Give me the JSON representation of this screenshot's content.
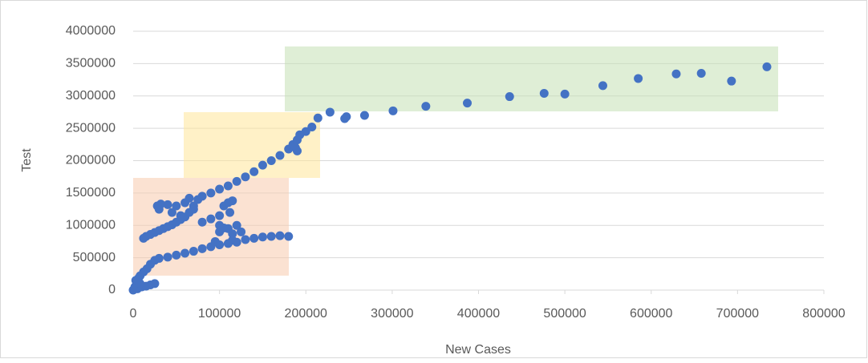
{
  "chart_data": {
    "type": "scatter",
    "x_label": "New Cases",
    "y_label": "Test",
    "color": "#4472c4",
    "grid": true,
    "xlim": [
      0,
      800000
    ],
    "xticks": [
      0,
      100000,
      200000,
      300000,
      400000,
      500000,
      600000,
      700000,
      800000
    ],
    "ylim": [
      0,
      4000000
    ],
    "yticks": [
      0,
      500000,
      1000000,
      1500000,
      2000000,
      2500000,
      3000000,
      3500000,
      4000000
    ],
    "x": [
      228000,
      245000,
      247000,
      268000,
      301000,
      339000,
      387000,
      436000,
      476000,
      500000,
      544000,
      585000,
      629000,
      658000,
      693000,
      734000,
      214000,
      207000,
      200000,
      193000,
      12000,
      15000,
      20000,
      25000,
      30000,
      35000,
      40000,
      45000,
      50000,
      55000,
      60000,
      65000,
      70000,
      75000,
      80000,
      90000,
      100000,
      110000,
      120000,
      130000,
      140000,
      150000,
      160000,
      170000,
      180000,
      185000,
      190000,
      188000,
      190000,
      28000,
      32000,
      40000,
      50000,
      60000,
      65000,
      30000,
      45000,
      55000,
      70000,
      80000,
      90000,
      100000,
      105000,
      110000,
      115000,
      112000,
      100000,
      110000,
      120000,
      125000,
      115000,
      0,
      2000,
      4000,
      6000,
      8000,
      12000,
      16000,
      20000,
      25000,
      30000,
      40000,
      50000,
      60000,
      70000,
      80000,
      90000,
      100000,
      110000,
      120000,
      130000,
      140000,
      150000,
      160000,
      170000,
      180000,
      95000,
      100000,
      105000,
      115000,
      5000,
      10000,
      15000,
      20000,
      25000,
      3000,
      8000
    ],
    "values": [
      2750000,
      2650000,
      2680000,
      2700000,
      2770000,
      2840000,
      2890000,
      2990000,
      3040000,
      3030000,
      3160000,
      3270000,
      3340000,
      3350000,
      3230000,
      3450000,
      2660000,
      2520000,
      2450000,
      2400000,
      800000,
      830000,
      860000,
      890000,
      920000,
      950000,
      980000,
      1010000,
      1050000,
      1090000,
      1130000,
      1200000,
      1300000,
      1400000,
      1450000,
      1500000,
      1560000,
      1610000,
      1680000,
      1750000,
      1830000,
      1930000,
      2000000,
      2080000,
      2180000,
      2250000,
      2320000,
      2200000,
      2150000,
      1300000,
      1330000,
      1320000,
      1300000,
      1350000,
      1420000,
      1250000,
      1200000,
      1150000,
      1250000,
      1050000,
      1100000,
      1150000,
      1300000,
      1350000,
      1380000,
      1200000,
      1000000,
      950000,
      1000000,
      900000,
      870000,
      0,
      50000,
      120000,
      180000,
      220000,
      280000,
      330000,
      400000,
      460000,
      490000,
      510000,
      540000,
      570000,
      600000,
      640000,
      670000,
      700000,
      720000,
      740000,
      780000,
      800000,
      820000,
      830000,
      840000,
      830000,
      750000,
      900000,
      960000,
      770000,
      20000,
      50000,
      60000,
      80000,
      100000,
      150000,
      100000
    ]
  }
}
